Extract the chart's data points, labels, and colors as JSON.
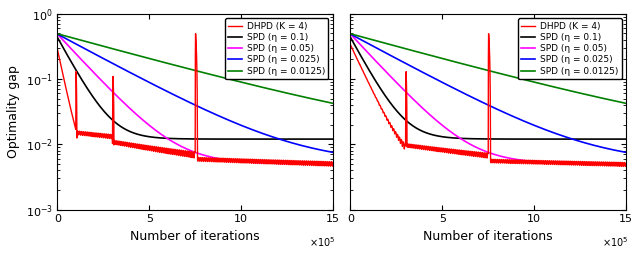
{
  "xlim": [
    0,
    1500000
  ],
  "ylim": [
    0.001,
    1.0
  ],
  "xticks": [
    0,
    500000,
    1000000,
    1500000
  ],
  "xticklabels": [
    "0",
    "5",
    "10",
    "15"
  ],
  "xlabel": "Number of iterations",
  "ylabel": "Optimality gap",
  "legend_labels": [
    "DHPD (K = 4)",
    "SPD (η = 0.1)",
    "SPD (η = 0.05)",
    "SPD (η = 0.025)",
    "SPD (η = 0.0125)"
  ],
  "colors": [
    "red",
    "black",
    "magenta",
    "blue",
    "green"
  ],
  "background": "white"
}
